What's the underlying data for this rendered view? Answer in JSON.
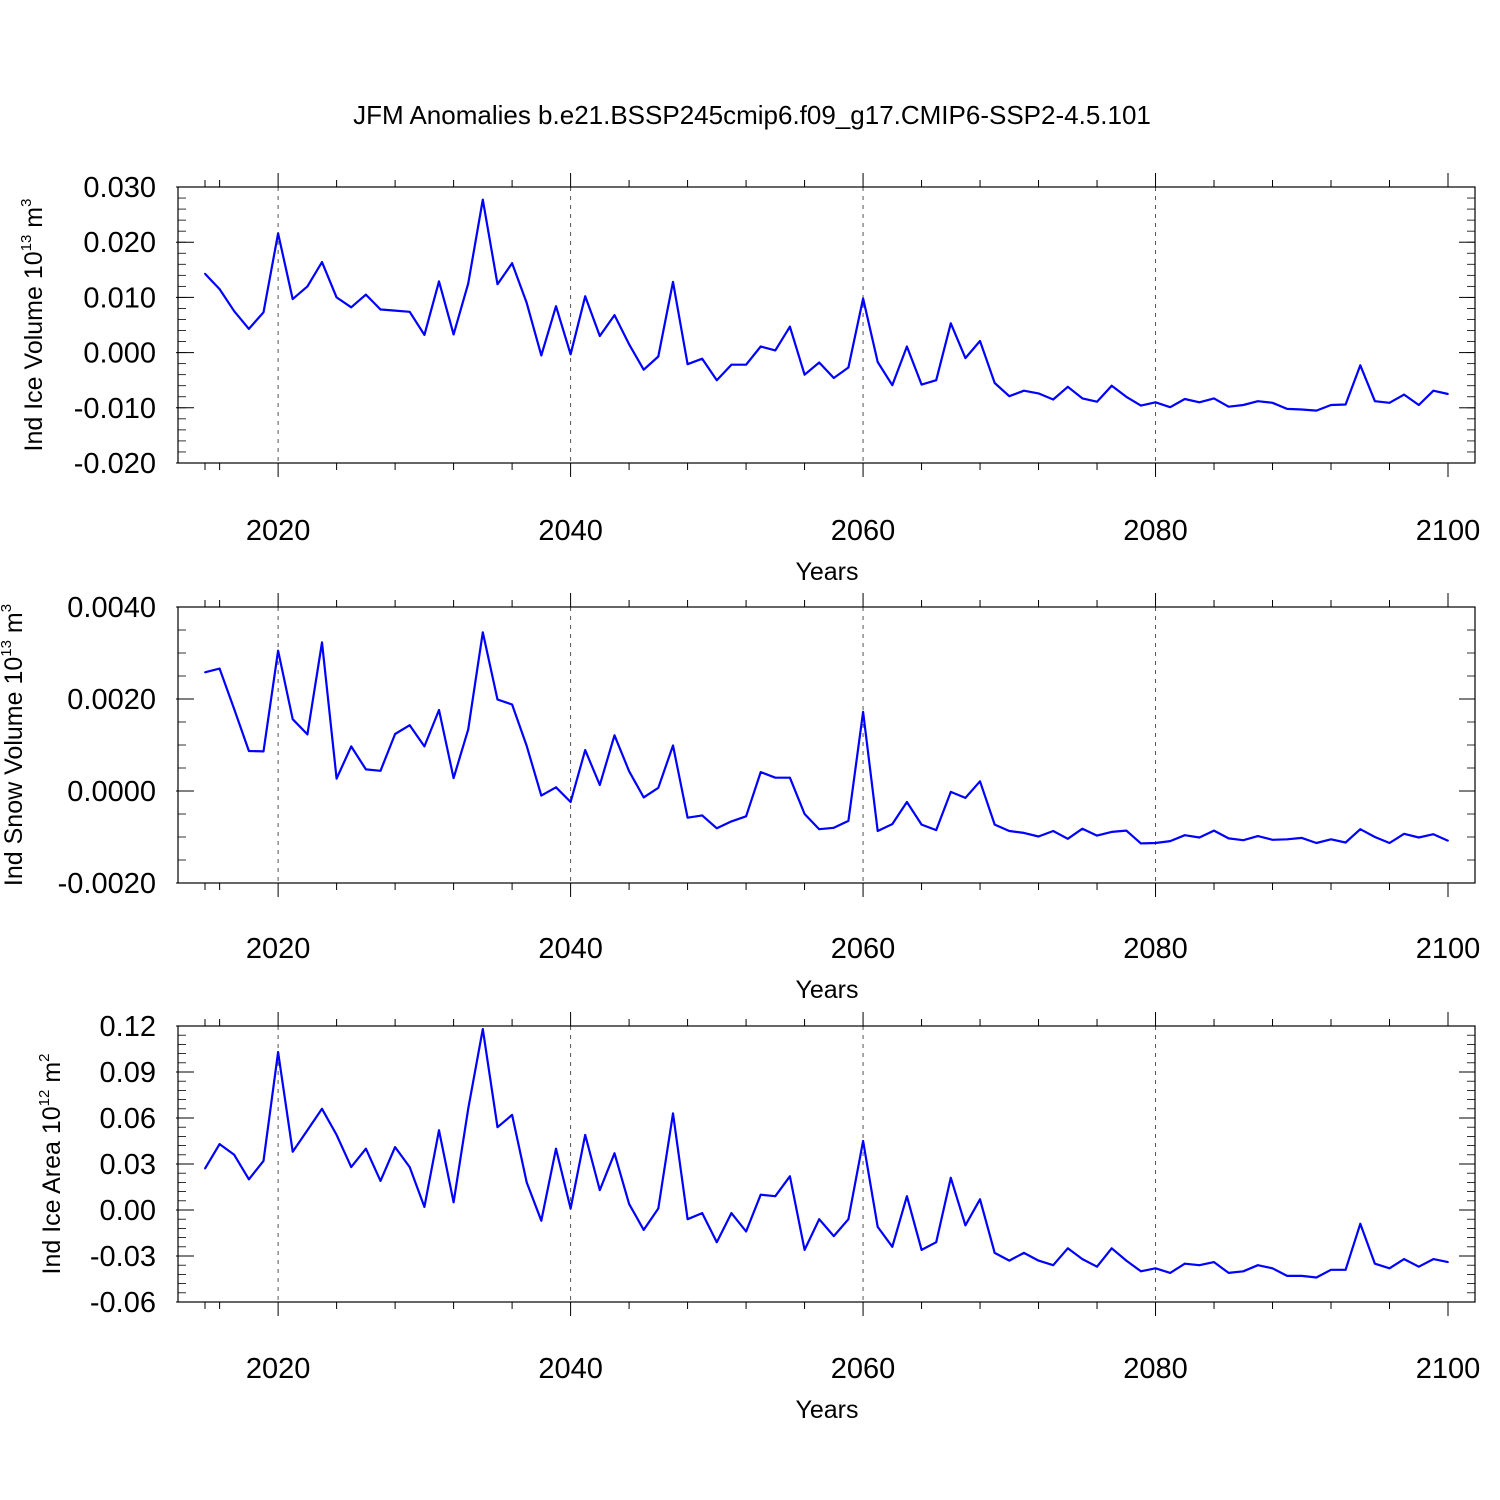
{
  "figure": {
    "title": "JFM Anomalies b.e21.BSSP245cmip6.f09_g17.CMIP6-SSP2-4.5.101"
  },
  "chart_data": [
    {
      "type": "line",
      "ylabel": {
        "text": "Ind Ice Volume 10",
        "exp": "13",
        "unit": " m",
        "unit_exp": "3"
      },
      "xlabel": "Years",
      "xlim": [
        2015,
        2100
      ],
      "ylim": [
        -0.02,
        0.03
      ],
      "yticks": [
        -0.02,
        -0.01,
        0.0,
        0.01,
        0.02,
        0.03
      ],
      "ytick_labels": [
        "-0.020",
        "-0.010",
        "0.000",
        "0.010",
        "0.020",
        "0.030"
      ],
      "yminor_step": 0.002,
      "xticks": [
        2020,
        2040,
        2060,
        2080,
        2100
      ],
      "xtick_labels": [
        "2020",
        "2040",
        "2060",
        "2080",
        "2100"
      ],
      "grid": "vertical dashed at major x ticks",
      "series": [
        {
          "color": "#0000ff",
          "x_start": 2015,
          "values": [
            0.0143,
            0.0115,
            0.0075,
            0.0043,
            0.0073,
            0.0216,
            0.0097,
            0.012,
            0.0164,
            0.01,
            0.0082,
            0.0105,
            0.0078,
            0.0076,
            0.0074,
            0.0032,
            0.0129,
            0.0033,
            0.0125,
            0.0277,
            0.0124,
            0.0162,
            0.009,
            -0.0005,
            0.0084,
            -0.0003,
            0.0102,
            0.003,
            0.0068,
            0.0015,
            -0.0031,
            -0.0007,
            0.0128,
            -0.0021,
            -0.0011,
            -0.005,
            -0.0022,
            -0.0022,
            0.0011,
            0.0004,
            0.0047,
            -0.004,
            -0.0018,
            -0.0046,
            -0.0027,
            0.0098,
            -0.0017,
            -0.0059,
            0.0011,
            -0.0058,
            -0.005,
            0.0053,
            -0.001,
            0.0021,
            -0.0055,
            -0.0079,
            -0.0069,
            -0.0074,
            -0.0085,
            -0.0062,
            -0.0083,
            -0.0089,
            -0.006,
            -0.008,
            -0.0096,
            -0.009,
            -0.0099,
            -0.0084,
            -0.009,
            -0.0083,
            -0.0098,
            -0.0095,
            -0.0088,
            -0.0091,
            -0.0102,
            -0.0103,
            -0.0105,
            -0.0095,
            -0.0094,
            -0.0023,
            -0.0088,
            -0.0091,
            -0.0076,
            -0.0095,
            -0.0069,
            -0.0075
          ]
        }
      ]
    },
    {
      "type": "line",
      "ylabel": {
        "text": "Ind Snow Volume 10",
        "exp": "13",
        "unit": " m",
        "unit_exp": "3"
      },
      "xlabel": "Years",
      "xlim": [
        2015,
        2100
      ],
      "ylim": [
        -0.002,
        0.004
      ],
      "yticks": [
        -0.002,
        0.0,
        0.002,
        0.004
      ],
      "ytick_labels": [
        "-0.0020",
        "0.0000",
        "0.0020",
        "0.0040"
      ],
      "yminor_step": 0.0005,
      "xticks": [
        2020,
        2040,
        2060,
        2080,
        2100
      ],
      "xtick_labels": [
        "2020",
        "2040",
        "2060",
        "2080",
        "2100"
      ],
      "grid": "vertical dashed at major x ticks",
      "series": [
        {
          "color": "#0000ff",
          "x_start": 2015,
          "values": [
            0.00258,
            0.00266,
            0.00178,
            0.00087,
            0.00086,
            0.00305,
            0.00156,
            0.00123,
            0.00323,
            0.00027,
            0.00097,
            0.00047,
            0.00044,
            0.00124,
            0.00143,
            0.00097,
            0.00176,
            0.00028,
            0.00134,
            0.00345,
            0.00199,
            0.00188,
            0.00098,
            -0.0001,
            8e-05,
            -0.00024,
            0.00089,
            0.00013,
            0.00121,
            0.00043,
            -0.00014,
            7e-05,
            0.00099,
            -0.00058,
            -0.00053,
            -0.00081,
            -0.00066,
            -0.00055,
            0.00041,
            0.00029,
            0.00029,
            -0.0005,
            -0.00083,
            -0.0008,
            -0.00065,
            0.00172,
            -0.00087,
            -0.00072,
            -0.00024,
            -0.00073,
            -0.00085,
            -2e-05,
            -0.00015,
            0.00021,
            -0.00073,
            -0.00087,
            -0.00091,
            -0.00099,
            -0.00087,
            -0.00104,
            -0.00082,
            -0.00097,
            -0.00089,
            -0.00086,
            -0.00114,
            -0.00113,
            -0.00109,
            -0.00096,
            -0.00101,
            -0.00086,
            -0.00103,
            -0.00107,
            -0.00098,
            -0.00106,
            -0.00105,
            -0.00102,
            -0.00113,
            -0.00105,
            -0.00112,
            -0.00083,
            -0.001,
            -0.00113,
            -0.00093,
            -0.00101,
            -0.00094,
            -0.00108
          ]
        }
      ]
    },
    {
      "type": "line",
      "ylabel": {
        "text": "Ind Ice Area 10",
        "exp": "12",
        "unit": " m",
        "unit_exp": "2"
      },
      "xlabel": "Years",
      "xlim": [
        2015,
        2100
      ],
      "ylim": [
        -0.06,
        0.12
      ],
      "yticks": [
        -0.06,
        -0.03,
        0.0,
        0.03,
        0.06,
        0.09,
        0.12
      ],
      "ytick_labels": [
        "-0.06",
        "-0.03",
        "0.00",
        "0.03",
        "0.06",
        "0.09",
        "0.12"
      ],
      "yminor_step": 0.006,
      "xticks": [
        2020,
        2040,
        2060,
        2080,
        2100
      ],
      "xtick_labels": [
        "2020",
        "2040",
        "2060",
        "2080",
        "2100"
      ],
      "grid": "vertical dashed at major x ticks",
      "series": [
        {
          "color": "#0000ff",
          "x_start": 2015,
          "values": [
            0.027,
            0.043,
            0.036,
            0.02,
            0.032,
            0.103,
            0.038,
            0.052,
            0.066,
            0.049,
            0.028,
            0.04,
            0.019,
            0.041,
            0.028,
            0.002,
            0.052,
            0.005,
            0.066,
            0.118,
            0.054,
            0.062,
            0.018,
            -0.007,
            0.04,
            0.001,
            0.049,
            0.013,
            0.037,
            0.004,
            -0.013,
            0.001,
            0.063,
            -0.006,
            -0.002,
            -0.021,
            -0.002,
            -0.014,
            0.01,
            0.009,
            0.022,
            -0.026,
            -0.006,
            -0.017,
            -0.006,
            0.045,
            -0.011,
            -0.024,
            0.009,
            -0.026,
            -0.021,
            0.021,
            -0.01,
            0.007,
            -0.028,
            -0.033,
            -0.028,
            -0.033,
            -0.036,
            -0.025,
            -0.032,
            -0.037,
            -0.025,
            -0.033,
            -0.04,
            -0.038,
            -0.041,
            -0.035,
            -0.036,
            -0.034,
            -0.041,
            -0.04,
            -0.036,
            -0.038,
            -0.043,
            -0.043,
            -0.044,
            -0.039,
            -0.039,
            -0.009,
            -0.035,
            -0.038,
            -0.032,
            -0.037,
            -0.032,
            -0.034
          ]
        }
      ]
    }
  ]
}
